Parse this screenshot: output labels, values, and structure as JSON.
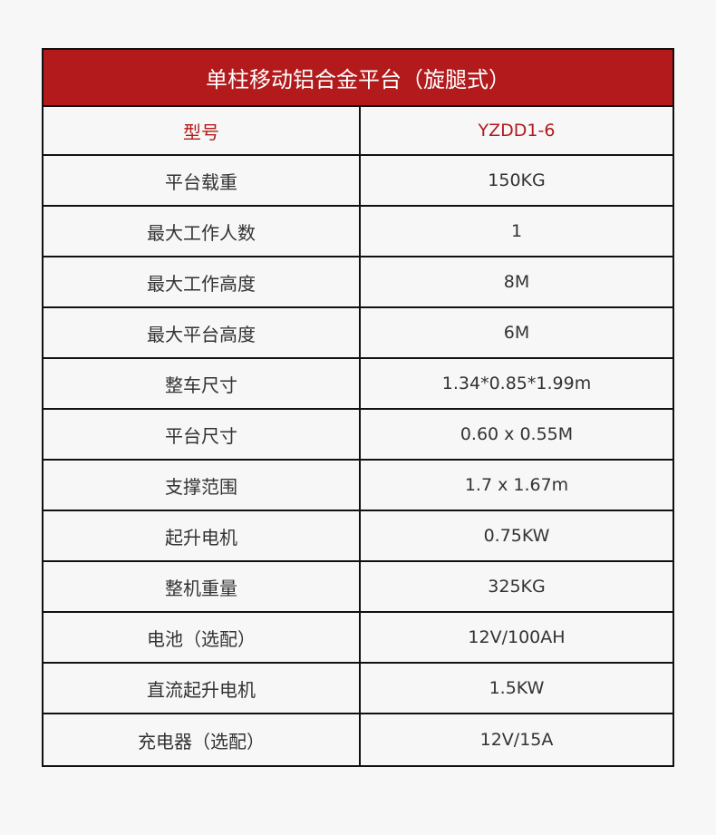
{
  "title": "单柱移动铝合金平台（旋腿式）",
  "accent_color": "#b21a1c",
  "rows": [
    {
      "label": "型号",
      "value": "YZDD1-6"
    },
    {
      "label": "平台载重",
      "value": "150KG"
    },
    {
      "label": "最大工作人数",
      "value": "1"
    },
    {
      "label": "最大工作高度",
      "value": "8M"
    },
    {
      "label": "最大平台高度",
      "value": "6M"
    },
    {
      "label": "整车尺寸",
      "value": "1.34*0.85*1.99m"
    },
    {
      "label": "平台尺寸",
      "value": "0.60 x 0.55M"
    },
    {
      "label": "支撑范围",
      "value": "1.7 x 1.67m"
    },
    {
      "label": "起升电机",
      "value": "0.75KW"
    },
    {
      "label": "整机重量",
      "value": "325KG"
    },
    {
      "label": "电池（选配）",
      "value": "12V/100AH"
    },
    {
      "label": "直流起升电机",
      "value": "1.5KW"
    },
    {
      "label": "充电器（选配）",
      "value": "12V/15A"
    }
  ]
}
